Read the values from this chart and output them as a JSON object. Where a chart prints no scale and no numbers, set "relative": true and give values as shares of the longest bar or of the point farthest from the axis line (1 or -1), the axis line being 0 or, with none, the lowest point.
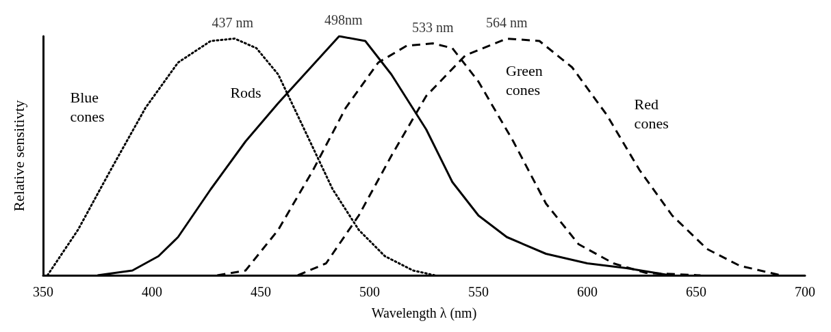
{
  "chart_data": {
    "type": "line",
    "relative": true,
    "xlabel": "Wavelength λ (nm)",
    "ylabel": "Relative sensitivty",
    "xlim": [
      350,
      700
    ],
    "xticks": [
      350,
      400,
      450,
      500,
      550,
      600,
      650,
      700
    ],
    "grid": false,
    "legend": false,
    "marker": "none",
    "series": [
      {
        "name": "Blue cones",
        "color": "#000000",
        "line_style": "dotted",
        "x": [
          352,
          366,
          381,
          397,
          412,
          427,
          438,
          448,
          458,
          470,
          483,
          495,
          507,
          520,
          530
        ],
        "values": [
          0,
          0.19,
          0.44,
          0.7,
          0.89,
          0.98,
          0.99,
          0.95,
          0.84,
          0.61,
          0.36,
          0.19,
          0.08,
          0.02,
          0
        ]
      },
      {
        "name": "Rods",
        "color": "#000000",
        "line_style": "solid",
        "x": [
          375,
          391,
          403,
          412,
          427,
          443,
          458,
          474,
          486,
          498,
          510,
          526,
          538,
          550,
          563,
          581,
          600,
          618,
          638
        ],
        "values": [
          0,
          0.02,
          0.08,
          0.16,
          0.36,
          0.56,
          0.72,
          0.88,
          1,
          0.98,
          0.84,
          0.61,
          0.39,
          0.25,
          0.16,
          0.09,
          0.05,
          0.03,
          0
        ]
      },
      {
        "name": "Green cones",
        "color": "#000000",
        "line_style": "dashed",
        "x": [
          430,
          443,
          458,
          474,
          489,
          504,
          517,
          529,
          538,
          550,
          566,
          581,
          596,
          612,
          627,
          652
        ],
        "values": [
          0,
          0.02,
          0.19,
          0.44,
          0.7,
          0.89,
          0.96,
          0.97,
          0.95,
          0.81,
          0.56,
          0.3,
          0.13,
          0.05,
          0.01,
          0
        ]
      },
      {
        "name": "Red cones",
        "color": "#000000",
        "line_style": "dashed",
        "x": [
          467,
          480,
          495,
          510,
          526,
          544,
          563,
          578,
          593,
          609,
          624,
          639,
          655,
          670,
          689
        ],
        "values": [
          0,
          0.05,
          0.25,
          0.5,
          0.75,
          0.92,
          0.99,
          0.98,
          0.87,
          0.67,
          0.44,
          0.25,
          0.11,
          0.04,
          0
        ]
      }
    ],
    "annotations": [
      {
        "text": "437 nm",
        "x": 437,
        "y": 0.99
      },
      {
        "text": "498nm",
        "x": 488,
        "y": 1
      },
      {
        "text": "533 nm",
        "x": 529,
        "y": 0.97
      },
      {
        "text": "564 nm",
        "x": 563,
        "y": 0.99
      }
    ]
  }
}
